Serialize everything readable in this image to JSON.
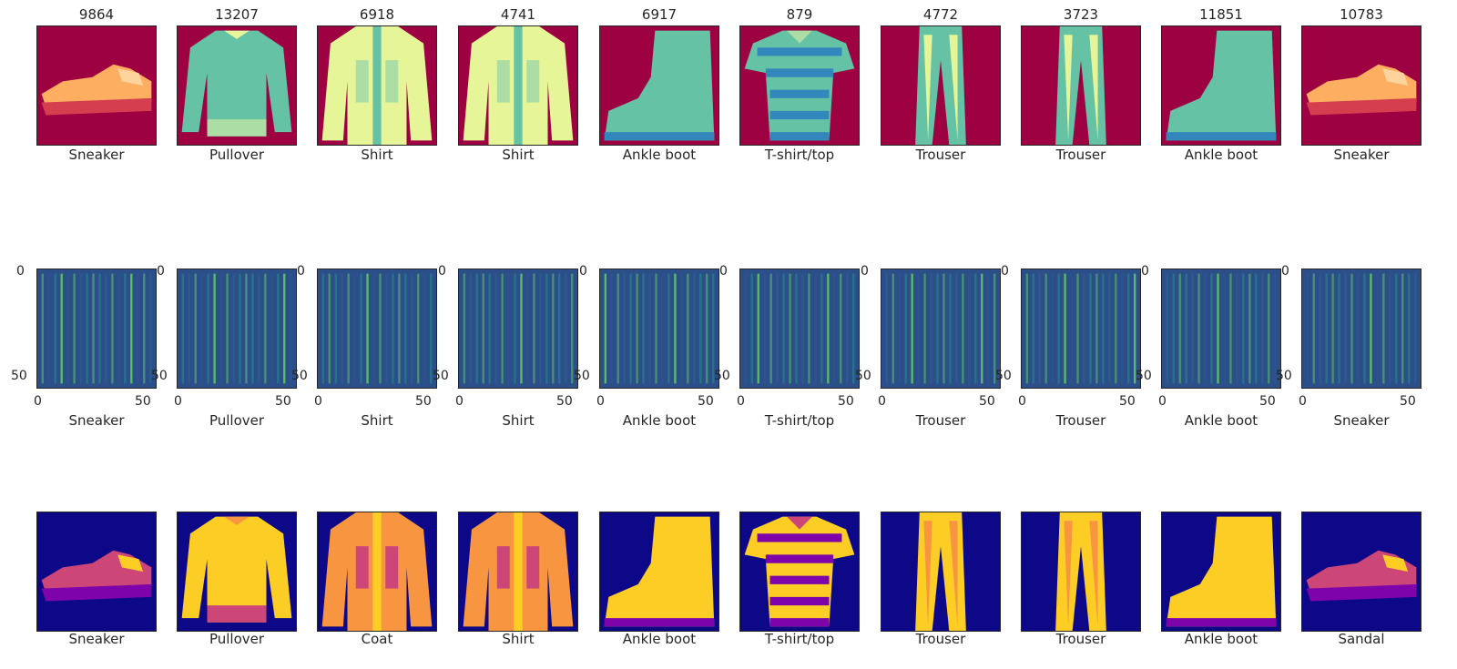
{
  "image_ids": [
    "9864",
    "13207",
    "6918",
    "4741",
    "6917",
    "879",
    "4772",
    "3723",
    "11851",
    "10783"
  ],
  "row1_labels": [
    "Sneaker",
    "Pullover",
    "Shirt",
    "Shirt",
    "Ankle boot",
    "T-shirt/top",
    "Trouser",
    "Trouser",
    "Ankle boot",
    "Sneaker"
  ],
  "row2_labels": [
    "Sneaker",
    "Pullover",
    "Shirt",
    "Shirt",
    "Ankle boot",
    "T-shirt/top",
    "Trouser",
    "Trouser",
    "Ankle boot",
    "Sneaker"
  ],
  "row3_labels": [
    "Sneaker",
    "Pullover",
    "Coat",
    "Shirt",
    "Ankle boot",
    "T-shirt/top",
    "Trouser",
    "Trouser",
    "Ankle boot",
    "Sandal"
  ],
  "axis_ticks": {
    "y": [
      "0",
      "50"
    ],
    "x": [
      "0",
      "50"
    ]
  },
  "colormaps": {
    "row1": {
      "name": "Spectral",
      "background": "#9e0142",
      "colors": [
        "#9e0142",
        "#f46d43",
        "#fee08b",
        "#e6f598",
        "#66c2a5",
        "#3288bd"
      ]
    },
    "row2": {
      "name": "viridis",
      "background": "#2c4f8a",
      "colors": [
        "#2c5a8e",
        "#21918c",
        "#5ec962",
        "#b5de2b"
      ]
    },
    "row3": {
      "name": "plasma",
      "background": "#0d0887",
      "colors": [
        "#0d0887",
        "#7e03a8",
        "#cc4778",
        "#f89540",
        "#fcce25",
        "#f0f921"
      ]
    }
  },
  "items": [
    "sneaker",
    "pullover",
    "shirt",
    "shirt",
    "ankle-boot",
    "tshirt",
    "trouser",
    "trouser",
    "ankle-boot",
    "sneaker"
  ],
  "row3_items": [
    "sneaker",
    "pullover",
    "shirt",
    "shirt",
    "ankle-boot",
    "tshirt",
    "trouser",
    "trouser",
    "ankle-boot",
    "sneaker"
  ]
}
